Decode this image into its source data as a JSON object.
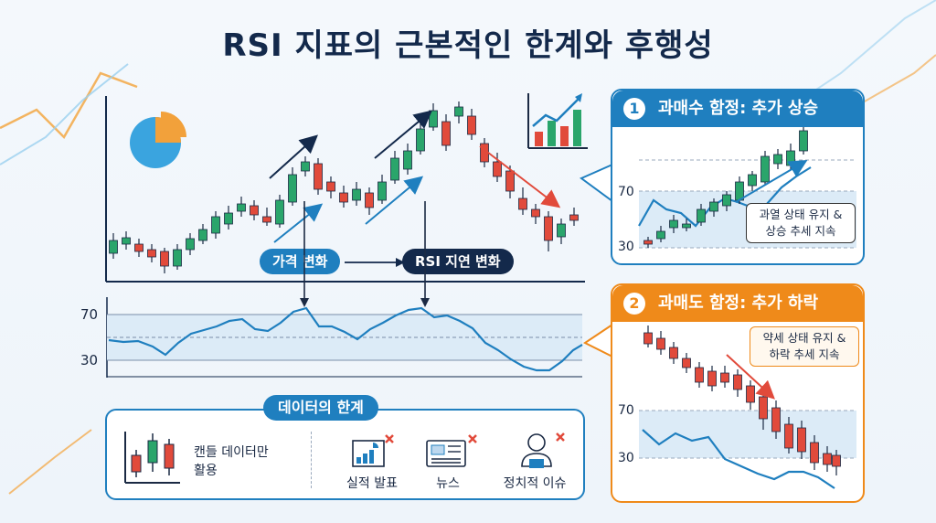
{
  "title": "RSI 지표의 근본적인 한계와 후행성",
  "main": {
    "price_change_label": "가격 변화",
    "rsi_lag_label": "RSI 지연 변화",
    "rsi_level_high": "70",
    "rsi_level_low": "30"
  },
  "overbought_panel": {
    "number": "1",
    "title": "과매수 함정: 추가 상승",
    "level_high": "70",
    "level_low": "30",
    "note_line1": "과열 상태 유지 &",
    "note_line2": "상승 추세 지속",
    "accent": "#1f7fbf"
  },
  "oversold_panel": {
    "number": "2",
    "title": "과매도 함정: 추가 하락",
    "level_high": "70",
    "level_low": "30",
    "note_line1": "약세 상태 유지 &",
    "note_line2": "하락 추세 지속",
    "accent": "#ef8a1a"
  },
  "limits": {
    "title": "데이터의 한계",
    "candle_only_line1": "캔들 데이터만",
    "candle_only_line2": "활용",
    "earnings": "실적 발표",
    "news": "뉴스",
    "political": "정치적 이슈"
  },
  "colors": {
    "up": "#2aa56b",
    "down": "#e14a3b",
    "rsi": "#1f7fbf",
    "band": "#dcebf7"
  }
}
